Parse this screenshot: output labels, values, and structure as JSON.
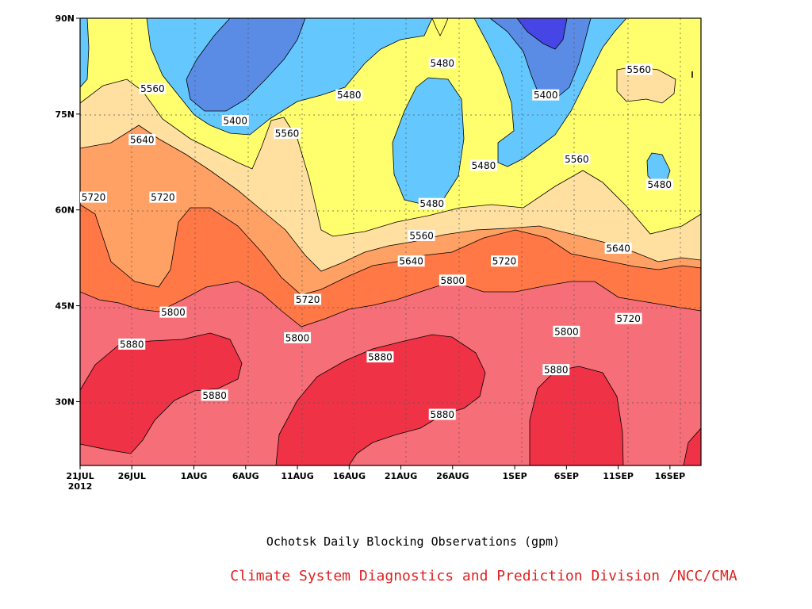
{
  "chart_data": {
    "type": "heatmap",
    "subtype": "filled-contour (time-latitude)",
    "title": "Ochotsk Daily Blocking Observations (gpm)",
    "credit": "Climate System Diagnostics and Prediction Division /NCC/CMA",
    "x_ticks": [
      "21JUL",
      "26JUL",
      "1AUG",
      "6AUG",
      "11AUG",
      "16AUG",
      "21AUG",
      "26AUG",
      "1SEP",
      "6SEP",
      "11SEP",
      "16SEP"
    ],
    "x_year_label": "2012",
    "x_range": [
      "21JUL2012",
      "19SEP2012"
    ],
    "y_ticks": [
      "30N",
      "45N",
      "60N",
      "75N",
      "90N"
    ],
    "y_range_deg": [
      20,
      90
    ],
    "contour_levels_gpm": [
      5400,
      5480,
      5560,
      5640,
      5720,
      5800,
      5880
    ],
    "fill_colors": {
      "below_5400": "#4646e6",
      "5400_5480": "#5a8ce6",
      "5480_5560": "#64c8ff",
      "5560_5640": "#ffff6e",
      "5640_5720": "#ffe0a0",
      "5720_5800": "#ffa064",
      "5800_5880": "#ff7846",
      "5880_5960": "#f56e78",
      "above_5960": "#f03246"
    },
    "contour_labels": [
      {
        "value": "5560",
        "date": "28JUL",
        "lat": 79
      },
      {
        "value": "5640",
        "date": "27JUL",
        "lat": 71
      },
      {
        "value": "5720",
        "date": "21JUL",
        "lat": 62
      },
      {
        "value": "5720",
        "date": "29JUL",
        "lat": 62
      },
      {
        "value": "5800",
        "date": "30JUL",
        "lat": 44
      },
      {
        "value": "5880",
        "date": "26JUL",
        "lat": 39
      },
      {
        "value": "5880",
        "date": "3AUG",
        "lat": 31
      },
      {
        "value": "5400",
        "date": "5AUG",
        "lat": 74
      },
      {
        "value": "5480",
        "date": "16AUG",
        "lat": 78
      },
      {
        "value": "5560",
        "date": "10AUG",
        "lat": 72
      },
      {
        "value": "5720",
        "date": "12AUG",
        "lat": 46
      },
      {
        "value": "5800",
        "date": "11AUG",
        "lat": 40
      },
      {
        "value": "5880",
        "date": "19AUG",
        "lat": 37
      },
      {
        "value": "5480",
        "date": "25AUG",
        "lat": 83
      },
      {
        "value": "5480",
        "date": "24AUG",
        "lat": 61
      },
      {
        "value": "5560",
        "date": "23AUG",
        "lat": 56
      },
      {
        "value": "5640",
        "date": "22AUG",
        "lat": 52
      },
      {
        "value": "5800",
        "date": "26AUG",
        "lat": 49
      },
      {
        "value": "5720",
        "date": "31AUG",
        "lat": 52
      },
      {
        "value": "5880",
        "date": "25AUG",
        "lat": 28
      },
      {
        "value": "5480",
        "date": "29AUG",
        "lat": 67
      },
      {
        "value": "5400",
        "date": "4SEP",
        "lat": 78
      },
      {
        "value": "5560",
        "date": "7SEP",
        "lat": 68
      },
      {
        "value": "5640",
        "date": "11SEP",
        "lat": 54
      },
      {
        "value": "5720",
        "date": "12SEP",
        "lat": 43
      },
      {
        "value": "5800",
        "date": "6SEP",
        "lat": 41
      },
      {
        "value": "5880",
        "date": "5SEP",
        "lat": 35
      },
      {
        "value": "5560",
        "date": "13SEP",
        "lat": 82
      },
      {
        "value": "5480",
        "date": "15SEP",
        "lat": 64
      }
    ]
  }
}
